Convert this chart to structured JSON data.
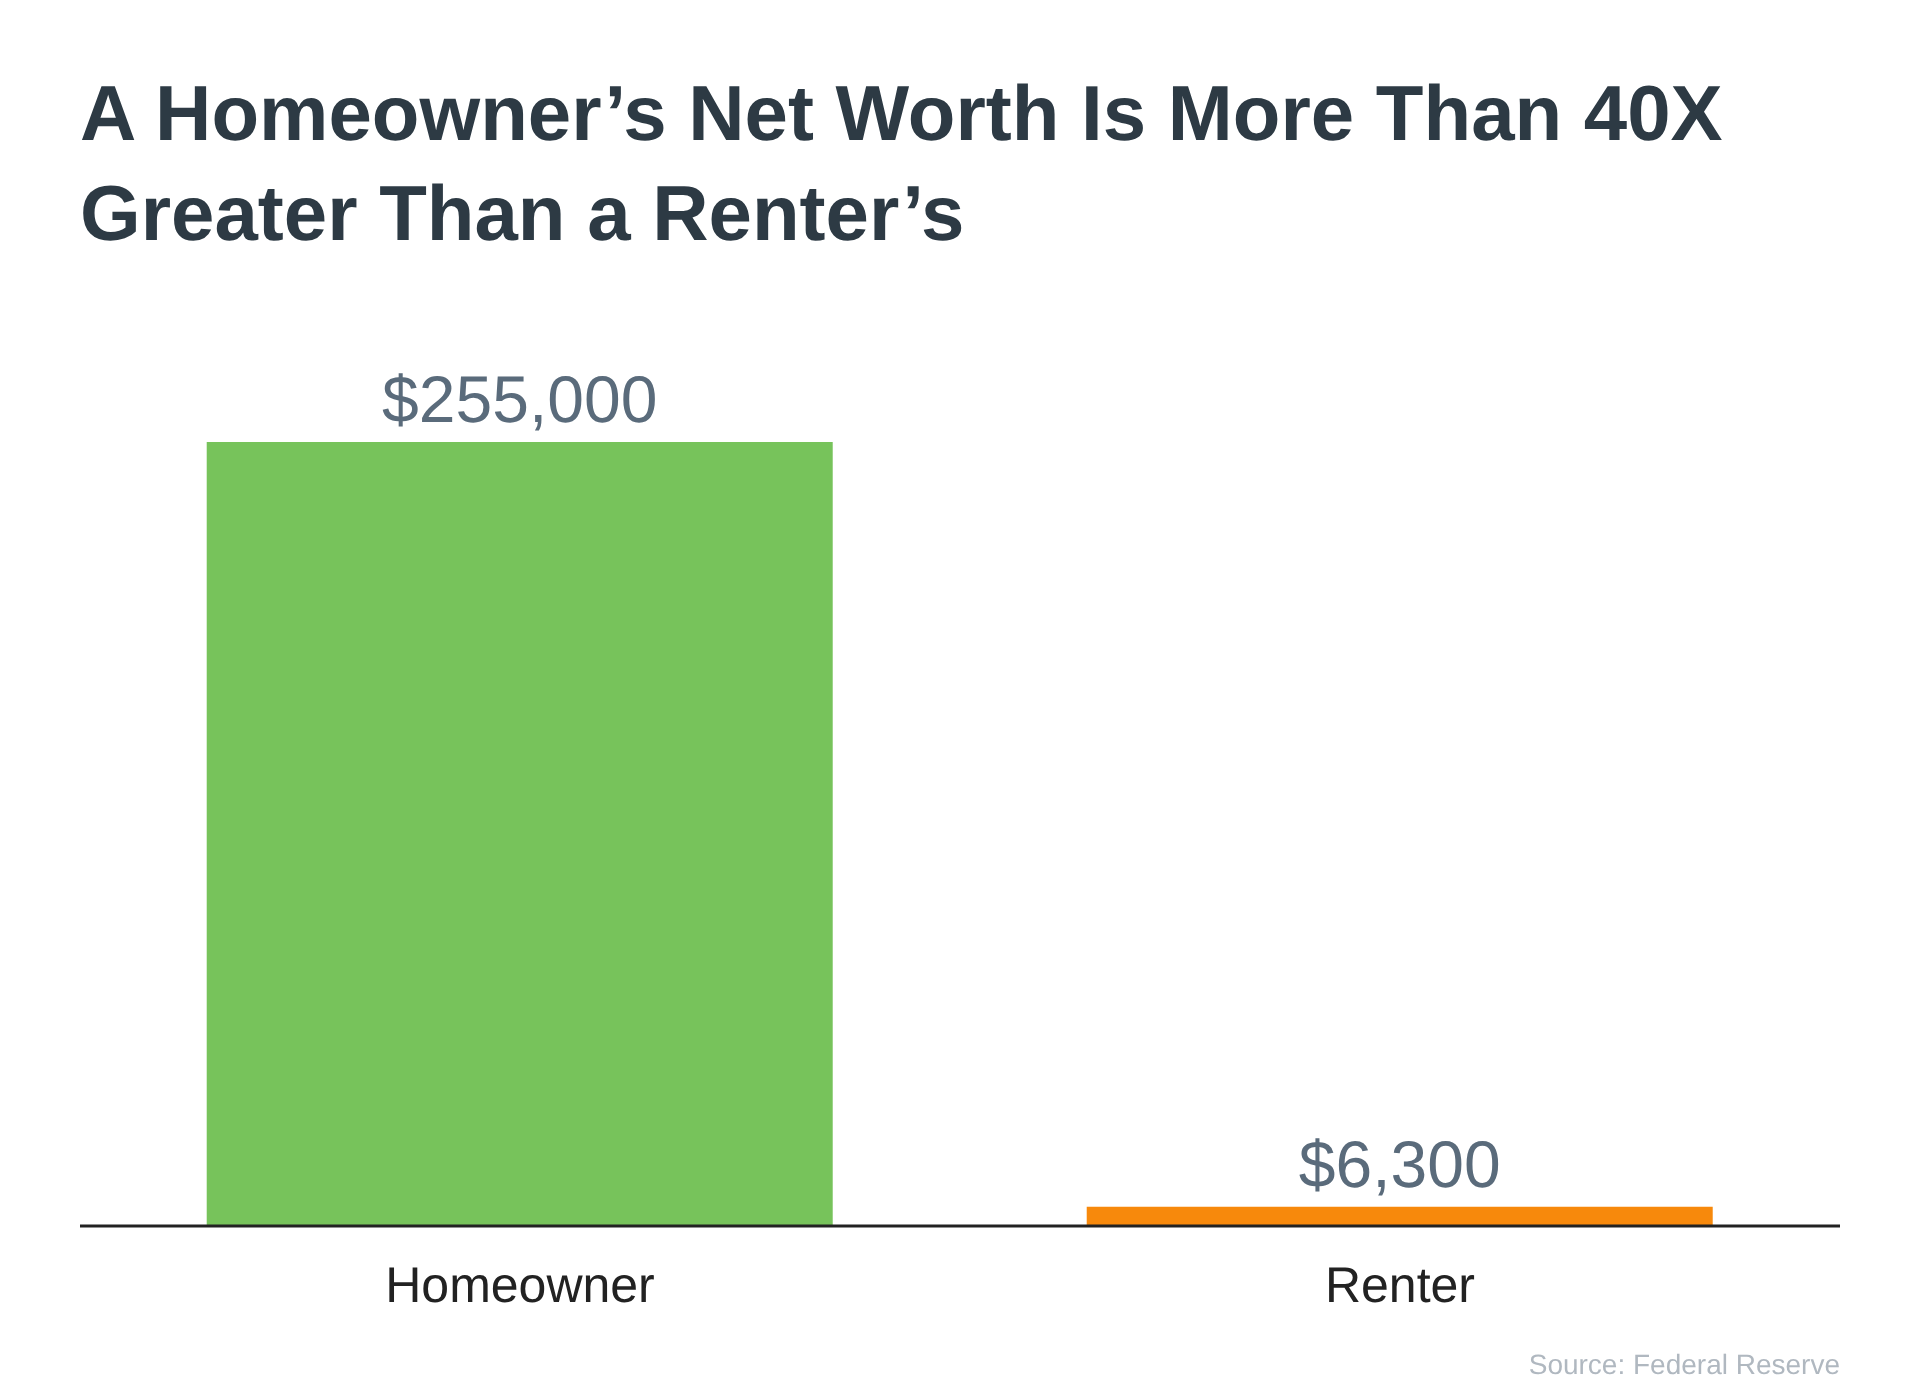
{
  "chart_data": {
    "type": "bar",
    "title": "A Homeowner’s Net Worth Is More Than 40X Greater Than a Renter’s",
    "categories": [
      "Homeowner",
      "Renter"
    ],
    "values": [
      255000,
      6300
    ],
    "colors": [
      "#77c35b",
      "#f7890c"
    ],
    "value_labels": [
      "$255,000",
      "$6,300"
    ],
    "annotations": [
      "Source: Federal Reserve"
    ]
  }
}
